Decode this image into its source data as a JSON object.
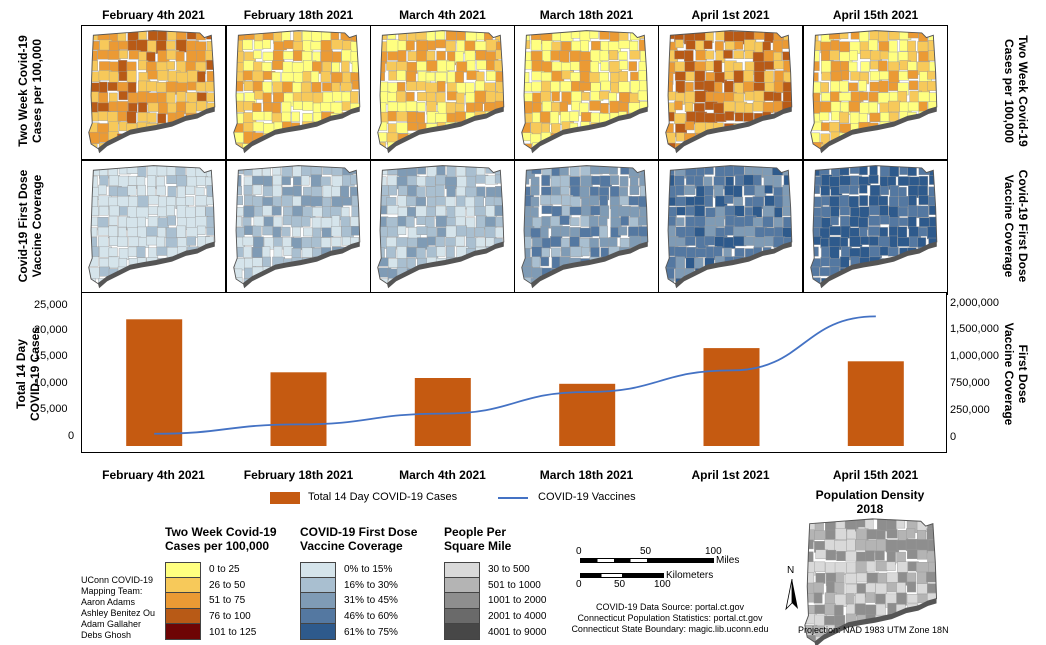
{
  "dates": [
    "February 4th 2021",
    "February 18th 2021",
    "March 4th 2021",
    "March 18th 2021",
    "April 1st 2021",
    "April 15th 2021"
  ],
  "row_labels": {
    "cases_left": [
      "Two Week Covid-19",
      "Cases per 100,000"
    ],
    "vaccine_left": [
      "Covid-19 First Dose",
      "Vaccine Coverage"
    ],
    "cases_right": [
      "Two Week Covid-19",
      "Cases per 100,000"
    ],
    "vaccine_right": [
      "Covid-19 First Dose",
      "Vaccine Coverage"
    ],
    "chart_left": [
      "Total 14 Day",
      "COVID-19 Cases"
    ],
    "chart_right": [
      "First Dose",
      "Vaccine Coverage"
    ]
  },
  "map_rows": {
    "cases_level_by_date": [
      3,
      2,
      2,
      2,
      3,
      2
    ],
    "vaccine_level_by_date": [
      0,
      1,
      1,
      2,
      3,
      4
    ]
  },
  "chart_data": {
    "type": "bar",
    "categories": [
      "February 4th 2021",
      "February 18th 2021",
      "March 4th 2021",
      "March 18th 2021",
      "April 1st 2021",
      "April 15th 2021"
    ],
    "series": [
      {
        "name": "Total 14 Day COVID-19 Cases",
        "type": "bar",
        "axis": "left",
        "color": "#c55a11",
        "values": [
          22000,
          12800,
          11800,
          10800,
          17000,
          14700
        ]
      },
      {
        "name": "COVID-19 Vaccines",
        "type": "line",
        "axis": "right",
        "color": "#4472c4",
        "values": [
          170000,
          300000,
          450000,
          750000,
          1050000,
          1800000
        ]
      }
    ],
    "ylim_left": [
      0,
      25000
    ],
    "yticks_left": [
      "25,000",
      "20,000",
      "15,000",
      "10,000",
      "5,000",
      "0"
    ],
    "ylim_right": [
      0,
      2000000
    ],
    "yticks_right": [
      "2,000,000",
      "1,500,000",
      "1,000,000",
      "750,000",
      "250,000",
      "0"
    ],
    "legend_position": "bottom"
  },
  "legend_cases": {
    "title": [
      "Two Week Covid-19",
      "Cases per 100,000"
    ],
    "items": [
      {
        "label": "0 to 25",
        "color": "#ffff80"
      },
      {
        "label": "26 to 50",
        "color": "#f7c95a"
      },
      {
        "label": "51 to 75",
        "color": "#eb9a34"
      },
      {
        "label": "76 to 100",
        "color": "#b85a16"
      },
      {
        "label": "101 to 125",
        "color": "#6e0505"
      }
    ]
  },
  "legend_vaccine": {
    "title": [
      "COVID-19 First Dose",
      "Vaccine Coverage"
    ],
    "items": [
      {
        "label": "0% to 15%",
        "color": "#d5e4eb"
      },
      {
        "label": "16% to 30%",
        "color": "#a9bfd0"
      },
      {
        "label": "31% to 45%",
        "color": "#7f9bb5"
      },
      {
        "label": "46% to 60%",
        "color": "#5478a1"
      },
      {
        "label": "61% to 75%",
        "color": "#2e5a8c"
      }
    ]
  },
  "legend_density": {
    "title": [
      "People Per",
      "Square Mile"
    ],
    "items": [
      {
        "label": "30 to 500",
        "color": "#d9d9d9"
      },
      {
        "label": "501 to 1000",
        "color": "#b4b4b4"
      },
      {
        "label": "1001 to 2000",
        "color": "#8e8e8e"
      },
      {
        "label": "2001 to 4000",
        "color": "#6a6a6a"
      },
      {
        "label": "4001 to 9000",
        "color": "#474747"
      }
    ]
  },
  "team": [
    "UConn COVID-19",
    "Mapping Team:",
    "Aaron Adams",
    "Ashley Benitez Ou",
    "Adam Gallaher",
    "Debs Ghosh"
  ],
  "scale": {
    "miles_ticks": [
      "0",
      "50",
      "100"
    ],
    "miles_unit": "Miles",
    "km_ticks": [
      "0",
      "50",
      "100"
    ],
    "km_unit": "Kilometers"
  },
  "sources": [
    "COVID-19 Data Source: portal.ct.gov",
    "Connecticut Population Statistics: portal.ct.gov",
    "Connecticut State Boundary: magic.lib.uconn.edu"
  ],
  "inset": {
    "title": [
      "Population Density",
      "2018"
    ],
    "projection": "Projection: NAD 1983 UTM Zone 18N",
    "north": "N"
  }
}
